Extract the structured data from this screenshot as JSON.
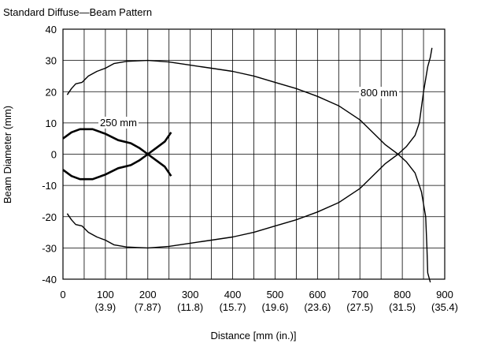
{
  "chart_data": {
    "type": "line",
    "title": "Standard Diffuse—Beam Pattern",
    "x_label": "Distance [mm (in.)]",
    "y_label": "Beam Diameter (mm)",
    "xlim": [
      0,
      900
    ],
    "ylim": [
      -40,
      40
    ],
    "xticks": [
      0,
      100,
      200,
      300,
      400,
      500,
      600,
      700,
      800,
      900
    ],
    "xtick_inch_labels": [
      "(3.9)",
      "(7.87)",
      "(11.8)",
      "(15.7)",
      "(19.6)",
      "(23.6)",
      "(27.5)",
      "(31.5)",
      "(35.4)"
    ],
    "xgrid": [
      50,
      150,
      250,
      350,
      450,
      550,
      650,
      750,
      850
    ],
    "yticks": [
      -40,
      -30,
      -20,
      -10,
      0,
      10,
      20,
      30,
      40
    ],
    "grid": true,
    "series": [
      {
        "name": "250 mm",
        "color": "#000000",
        "width": 2.6,
        "x": [
          0,
          20,
          40,
          70,
          100,
          130,
          160,
          180,
          200,
          220,
          240,
          255
        ],
        "values": [
          5,
          7,
          8,
          8,
          6.5,
          4.5,
          3.5,
          2,
          0,
          -2,
          -4,
          -7
        ]
      },
      {
        "name": "250 mm",
        "color": "#000000",
        "width": 2.6,
        "x": [
          0,
          20,
          40,
          70,
          100,
          130,
          160,
          180,
          200,
          220,
          240,
          255
        ],
        "values": [
          -5,
          -7,
          -8,
          -8,
          -6.5,
          -4.5,
          -3.5,
          -2,
          0,
          2,
          4,
          7
        ]
      },
      {
        "name": "800 mm",
        "color": "#000000",
        "width": 1.4,
        "x": [
          10,
          20,
          30,
          45,
          60,
          80,
          100,
          120,
          150,
          200,
          250,
          300,
          350,
          400,
          450,
          500,
          550,
          600,
          650,
          700,
          730,
          760,
          790,
          810,
          830,
          845,
          855,
          858,
          860,
          866
        ],
        "values": [
          19,
          21,
          22.5,
          23,
          25,
          26.5,
          27.5,
          29,
          29.7,
          30,
          29.5,
          28.5,
          27.5,
          26.5,
          25,
          23,
          21,
          18.5,
          15.5,
          11,
          7,
          3,
          0,
          -2.5,
          -6,
          -12,
          -20,
          -30,
          -38,
          -41
        ]
      },
      {
        "name": "800 mm",
        "color": "#000000",
        "width": 1.4,
        "x": [
          10,
          20,
          30,
          45,
          60,
          80,
          100,
          120,
          150,
          200,
          250,
          300,
          350,
          400,
          450,
          500,
          550,
          600,
          650,
          700,
          730,
          760,
          790,
          810,
          830,
          840,
          850,
          860,
          866,
          870
        ],
        "values": [
          -19,
          -21,
          -22.5,
          -23,
          -25,
          -26.5,
          -27.5,
          -29,
          -29.7,
          -30,
          -29.5,
          -28.5,
          -27.5,
          -26.5,
          -25,
          -23,
          -21,
          -18.5,
          -15.5,
          -11,
          -7,
          -3,
          0,
          2.5,
          6,
          10,
          20,
          28,
          31,
          34
        ]
      }
    ]
  }
}
